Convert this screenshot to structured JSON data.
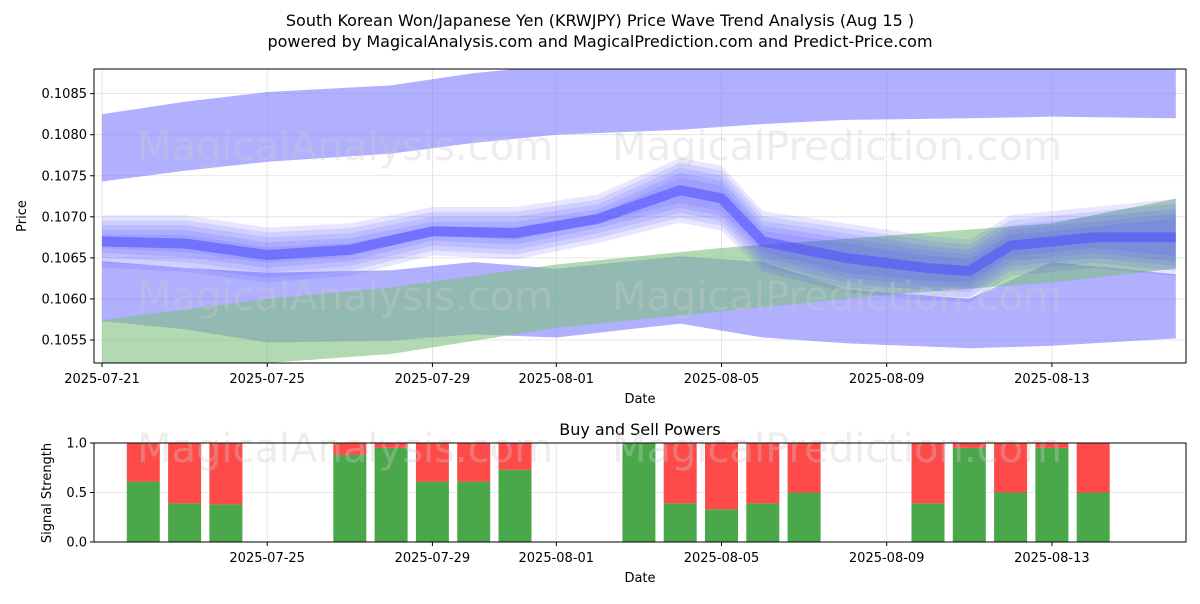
{
  "title_line1": "South Korean Won/Japanese Yen (KRWJPY) Price Wave Trend Analysis (Aug 15 )",
  "title_line2": "powered by MagicalAnalysis.com and MagicalPrediction.com and Predict-Price.com",
  "watermarks": [
    "MagicalAnalysis.com",
    "MagicalPrediction.com"
  ],
  "colors": {
    "band_blue": "#6f6fff",
    "band_green": "#7fc07f",
    "buy": "#4aa84a",
    "sell": "#ff4a4a",
    "wave": "#4d4dff"
  },
  "chart_data": [
    {
      "type": "area",
      "xlabel": "Date",
      "ylabel": "Price",
      "xlim": [
        "2025-07-21",
        "2025-08-17"
      ],
      "ylim": [
        0.10522,
        0.1088
      ],
      "x_ticks": [
        "2025-07-21",
        "2025-07-25",
        "2025-07-29",
        "2025-08-01",
        "2025-08-05",
        "2025-08-09",
        "2025-08-13"
      ],
      "y_ticks": [
        "0.1055",
        "0.1060",
        "0.1065",
        "0.1070",
        "0.1075",
        "0.1080",
        "0.1085"
      ],
      "grid": true,
      "series": [
        {
          "kind": "band",
          "color": "blue",
          "x": [
            "2025-07-21",
            "2025-07-23",
            "2025-07-25",
            "2025-07-28",
            "2025-07-30",
            "2025-08-01",
            "2025-08-04",
            "2025-08-06",
            "2025-08-08",
            "2025-08-11",
            "2025-08-13",
            "2025-08-16"
          ],
          "upper": [
            0.10825,
            0.1084,
            0.10852,
            0.1086,
            0.10875,
            0.10885,
            0.1089,
            0.1089,
            0.1089,
            0.1089,
            0.1089,
            0.1088
          ],
          "lower": [
            0.10743,
            0.10756,
            0.10767,
            0.10777,
            0.1079,
            0.108,
            0.10806,
            0.10813,
            0.10818,
            0.1082,
            0.10822,
            0.1082
          ]
        },
        {
          "kind": "band",
          "color": "blue",
          "x": [
            "2025-07-21",
            "2025-07-23",
            "2025-07-25",
            "2025-07-28",
            "2025-07-30",
            "2025-08-01",
            "2025-08-04",
            "2025-08-06",
            "2025-08-08",
            "2025-08-11",
            "2025-08-13",
            "2025-08-16"
          ],
          "upper": [
            0.10646,
            0.10638,
            0.10632,
            0.10635,
            0.10645,
            0.10637,
            0.10652,
            0.10645,
            0.10612,
            0.106,
            0.10645,
            0.1063
          ],
          "lower": [
            0.10573,
            0.10563,
            0.10547,
            0.10549,
            0.10557,
            0.10553,
            0.1057,
            0.10553,
            0.10546,
            0.1054,
            0.10543,
            0.10552
          ]
        },
        {
          "kind": "band",
          "color": "green",
          "x": [
            "2025-07-21",
            "2025-07-25",
            "2025-07-28",
            "2025-08-01",
            "2025-08-05",
            "2025-08-09",
            "2025-08-13",
            "2025-08-16"
          ],
          "upper": [
            0.10574,
            0.106,
            0.10614,
            0.10642,
            0.10662,
            0.10677,
            0.10692,
            0.10722
          ],
          "lower": [
            0.10522,
            0.10522,
            0.10533,
            0.10565,
            0.10585,
            0.10605,
            0.1062,
            0.10637
          ]
        },
        {
          "kind": "wave",
          "x": [
            "2025-07-21",
            "2025-07-23",
            "2025-07-25",
            "2025-07-27",
            "2025-07-29",
            "2025-07-31",
            "2025-08-02",
            "2025-08-04",
            "2025-08-05",
            "2025-08-06",
            "2025-08-08",
            "2025-08-10",
            "2025-08-11",
            "2025-08-12",
            "2025-08-14",
            "2025-08-16"
          ],
          "upper": [
            0.1069,
            0.1069,
            0.10675,
            0.1068,
            0.107,
            0.107,
            0.10715,
            0.1076,
            0.1075,
            0.10695,
            0.1068,
            0.10665,
            0.1066,
            0.1069,
            0.107,
            0.1071
          ],
          "lower": [
            0.1065,
            0.10645,
            0.10632,
            0.1064,
            0.10665,
            0.1066,
            0.1068,
            0.10705,
            0.10695,
            0.10645,
            0.1062,
            0.1061,
            0.10608,
            0.1064,
            0.1065,
            0.1064
          ]
        }
      ]
    },
    {
      "type": "bar",
      "title": "Buy and Sell Powers",
      "xlabel": "Date",
      "ylabel": "Signal Strength",
      "ylim": [
        0,
        1
      ],
      "y_ticks": [
        "0.0",
        "0.5",
        "1.0"
      ],
      "x_ticks": [
        "2025-07-25",
        "2025-07-29",
        "2025-08-01",
        "2025-08-05",
        "2025-08-09",
        "2025-08-13"
      ],
      "categories": [
        "2025-07-22",
        "2025-07-23",
        "2025-07-24",
        "2025-07-27",
        "2025-07-28",
        "2025-07-29",
        "2025-07-30",
        "2025-07-31",
        "2025-08-03",
        "2025-08-04",
        "2025-08-05",
        "2025-08-06",
        "2025-08-07",
        "2025-08-10",
        "2025-08-11",
        "2025-08-12",
        "2025-08-13",
        "2025-08-14"
      ],
      "series": [
        {
          "name": "buy",
          "values": [
            0.61,
            0.39,
            0.38,
            0.88,
            0.95,
            0.61,
            0.61,
            0.73,
            1.0,
            0.39,
            0.33,
            0.39,
            0.5,
            0.39,
            0.95,
            0.5,
            0.95,
            0.5
          ]
        },
        {
          "name": "sell",
          "values": [
            0.39,
            0.61,
            0.62,
            0.12,
            0.05,
            0.39,
            0.39,
            0.27,
            0.0,
            0.61,
            0.67,
            0.61,
            0.5,
            0.61,
            0.05,
            0.5,
            0.05,
            0.5
          ]
        }
      ]
    }
  ]
}
